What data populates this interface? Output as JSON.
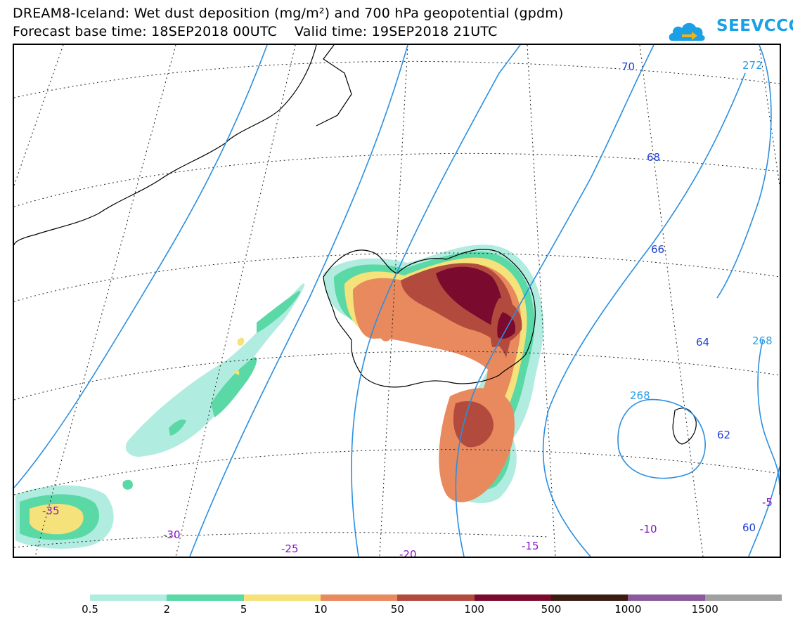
{
  "header": {
    "title_line1": "DREAM8-Iceland: Wet dust deposition (mg/m²) and 700 hPa geopotential (gpdm)",
    "title_line2": "Forecast base time: 18SEP2018 00UTC    Valid time: 19SEP2018 21UTC",
    "logo_text": "SEEVCCC",
    "logo_icon": "cloud-arrow-icon"
  },
  "map": {
    "graticule_labels": [
      {
        "id": "lon-35",
        "text": "-35"
      },
      {
        "id": "lon-30",
        "text": "-30"
      },
      {
        "id": "lon-25",
        "text": "-25"
      },
      {
        "id": "lon-20",
        "text": "-20"
      },
      {
        "id": "lon-15",
        "text": "-15"
      },
      {
        "id": "lon-10",
        "text": "-10"
      },
      {
        "id": "lon-5",
        "text": "-5"
      }
    ],
    "contour_labels": [
      {
        "id": "z70",
        "text": "70"
      },
      {
        "id": "z68",
        "text": "68"
      },
      {
        "id": "z66",
        "text": "66"
      },
      {
        "id": "z64",
        "text": "64"
      },
      {
        "id": "z62",
        "text": "62"
      },
      {
        "id": "z60",
        "text": "60"
      },
      {
        "id": "z272",
        "text": "272"
      },
      {
        "id": "z268a",
        "text": "268"
      },
      {
        "id": "z268b",
        "text": "268"
      }
    ],
    "colors": {
      "contour": "#2b8fe0",
      "lat_label": "#1f3fd6",
      "lon_label": "#8a12c9",
      "z_label": "#2aa0e8"
    }
  },
  "legend": {
    "colors": [
      "#b0ecdf",
      "#5ad8a6",
      "#f5e27a",
      "#e8895e",
      "#b24a3d",
      "#7a0a2e",
      "#3a1c10",
      "#8a5a9c",
      "#a0a0a0"
    ],
    "labels": [
      "0.5",
      "2",
      "5",
      "10",
      "50",
      "100",
      "500",
      "1000",
      "1500"
    ]
  }
}
